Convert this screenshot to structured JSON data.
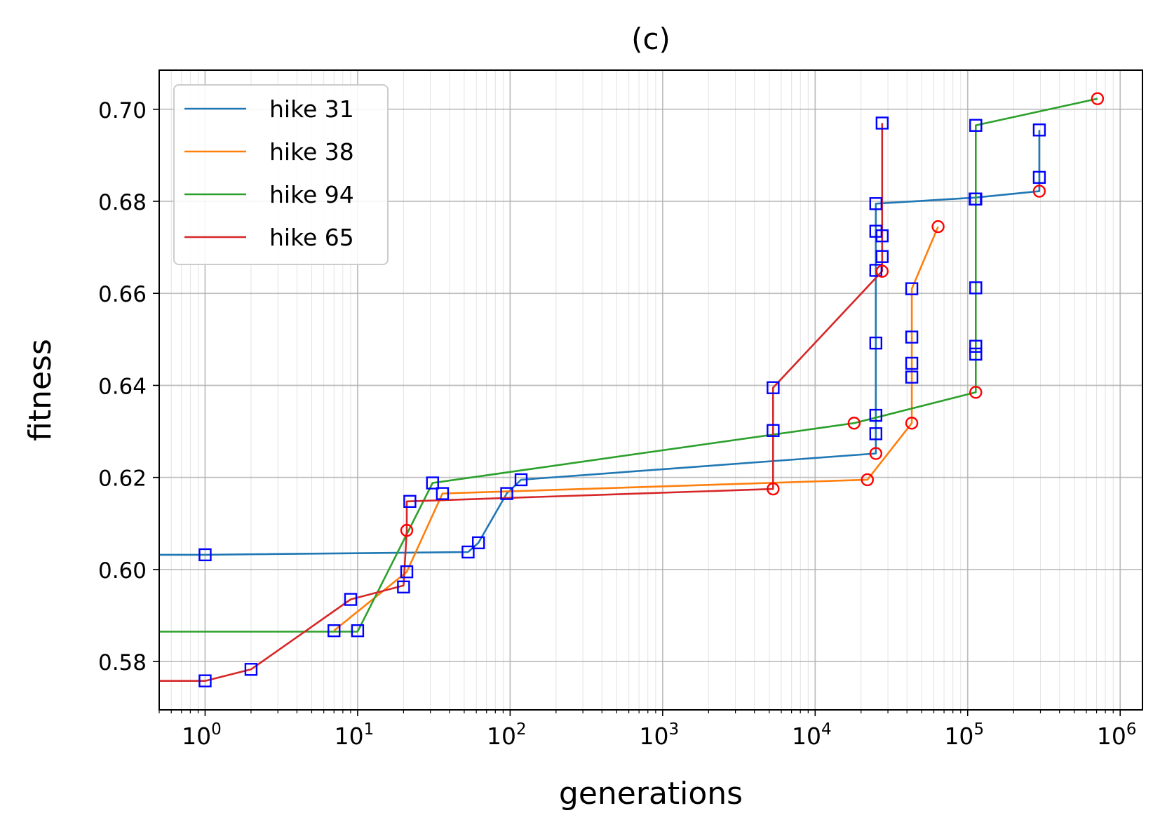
{
  "chart_data": {
    "type": "line",
    "title": "(c)",
    "xlabel": "generations",
    "ylabel": "fitness",
    "xscale": "log",
    "xlim": [
      0.5,
      1400000
    ],
    "ylim": [
      0.5695,
      0.7085
    ],
    "grid": true,
    "legend_position": "top-left",
    "x_ticks": [
      {
        "value": 1,
        "base": "10",
        "exp": "0"
      },
      {
        "value": 10,
        "base": "10",
        "exp": "1"
      },
      {
        "value": 100,
        "base": "10",
        "exp": "2"
      },
      {
        "value": 1000,
        "base": "10",
        "exp": "3"
      },
      {
        "value": 10000,
        "base": "10",
        "exp": "4"
      },
      {
        "value": 100000,
        "base": "10",
        "exp": "5"
      },
      {
        "value": 1000000,
        "base": "10",
        "exp": "6"
      }
    ],
    "y_ticks": [
      {
        "value": 0.58,
        "label": "0.58"
      },
      {
        "value": 0.6,
        "label": "0.60"
      },
      {
        "value": 0.62,
        "label": "0.62"
      },
      {
        "value": 0.64,
        "label": "0.64"
      },
      {
        "value": 0.66,
        "label": "0.66"
      },
      {
        "value": 0.68,
        "label": "0.68"
      },
      {
        "value": 0.7,
        "label": "0.70"
      }
    ],
    "square_marker_color": "#0000ff",
    "circle_marker_color": "#ff0000",
    "series": [
      {
        "name": "hike 31",
        "color": "#1f77b4",
        "line": [
          [
            0.5,
            0.6032
          ],
          [
            1,
            0.6032
          ],
          [
            53,
            0.6038
          ],
          [
            62,
            0.6058
          ],
          [
            95,
            0.6165
          ],
          [
            118,
            0.6195
          ],
          [
            25000,
            0.6252
          ],
          [
            25000,
            0.6795
          ],
          [
            112000,
            0.6808
          ],
          [
            295000,
            0.6822
          ],
          [
            295000,
            0.6955
          ]
        ],
        "squares": [
          [
            1,
            0.6032
          ],
          [
            53,
            0.6038
          ],
          [
            62,
            0.6058
          ],
          [
            95,
            0.6165
          ],
          [
            118,
            0.6195
          ],
          [
            25000,
            0.6295
          ],
          [
            25000,
            0.6335
          ],
          [
            25000,
            0.6492
          ],
          [
            25000,
            0.665
          ],
          [
            25000,
            0.6735
          ],
          [
            25000,
            0.6795
          ],
          [
            112000,
            0.6805
          ],
          [
            295000,
            0.6852
          ],
          [
            295000,
            0.6955
          ]
        ],
        "circles": [
          [
            25000,
            0.6252
          ],
          [
            295000,
            0.6822
          ]
        ]
      },
      {
        "name": "hike 38",
        "color": "#ff7f0e",
        "line": [
          [
            7,
            0.5867
          ],
          [
            21,
            0.5995
          ],
          [
            36,
            0.6165
          ],
          [
            22000,
            0.6195
          ],
          [
            43000,
            0.6318
          ],
          [
            43000,
            0.661
          ],
          [
            64000,
            0.6745
          ]
        ],
        "squares": [
          [
            7,
            0.5867
          ],
          [
            21,
            0.5995
          ],
          [
            36,
            0.6165
          ],
          [
            43000,
            0.6418
          ],
          [
            43000,
            0.6448
          ],
          [
            43000,
            0.6505
          ],
          [
            43000,
            0.661
          ]
        ],
        "circles": [
          [
            22000,
            0.6195
          ],
          [
            43000,
            0.6318
          ],
          [
            64000,
            0.6745
          ]
        ]
      },
      {
        "name": "hike 94",
        "color": "#2ca02c",
        "line": [
          [
            0.5,
            0.5865
          ],
          [
            10,
            0.5865
          ],
          [
            31,
            0.6188
          ],
          [
            18000,
            0.6318
          ],
          [
            113000,
            0.6385
          ],
          [
            113000,
            0.6965
          ],
          [
            710000,
            0.7023
          ]
        ],
        "squares": [
          [
            10,
            0.5867
          ],
          [
            31,
            0.6188
          ],
          [
            113000,
            0.6468
          ],
          [
            113000,
            0.6485
          ],
          [
            113000,
            0.6612
          ],
          [
            113000,
            0.6805
          ],
          [
            113000,
            0.6965
          ]
        ],
        "circles": [
          [
            18000,
            0.6318
          ],
          [
            113000,
            0.6385
          ],
          [
            710000,
            0.7023
          ]
        ]
      },
      {
        "name": "hike 65",
        "color": "#d62728",
        "line": [
          [
            0.5,
            0.5758
          ],
          [
            1,
            0.5758
          ],
          [
            2,
            0.5783
          ],
          [
            9,
            0.5935
          ],
          [
            20,
            0.5965
          ],
          [
            21,
            0.6085
          ],
          [
            21,
            0.6148
          ],
          [
            5300,
            0.6175
          ],
          [
            5300,
            0.6395
          ],
          [
            27500,
            0.6648
          ],
          [
            27500,
            0.697
          ]
        ],
        "squares": [
          [
            1,
            0.5758
          ],
          [
            2,
            0.5783
          ],
          [
            9,
            0.5935
          ],
          [
            20,
            0.5962
          ],
          [
            22,
            0.6148
          ],
          [
            5300,
            0.6302
          ],
          [
            5300,
            0.6395
          ],
          [
            27500,
            0.668
          ],
          [
            27500,
            0.6725
          ],
          [
            27500,
            0.697
          ]
        ],
        "circles": [
          [
            21,
            0.6085
          ],
          [
            5300,
            0.6175
          ],
          [
            27500,
            0.6648
          ]
        ]
      }
    ]
  }
}
